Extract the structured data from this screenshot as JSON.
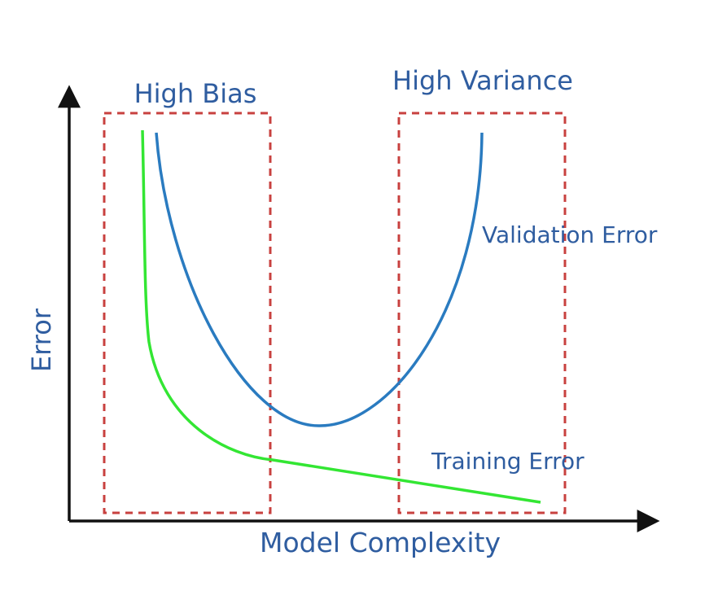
{
  "diagram": {
    "region_labels": {
      "left": "High Bias",
      "right": "High Variance"
    },
    "axes": {
      "x_label": "Model Complexity",
      "y_label": "Error"
    },
    "curves": {
      "validation": {
        "label": "Validation Error",
        "color": "#2a7bc0"
      },
      "training": {
        "label": "Training Error",
        "color": "#33e633"
      }
    },
    "colors": {
      "text": "#2f5da0",
      "region_border": "#c8413f",
      "axis": "#111111"
    }
  }
}
